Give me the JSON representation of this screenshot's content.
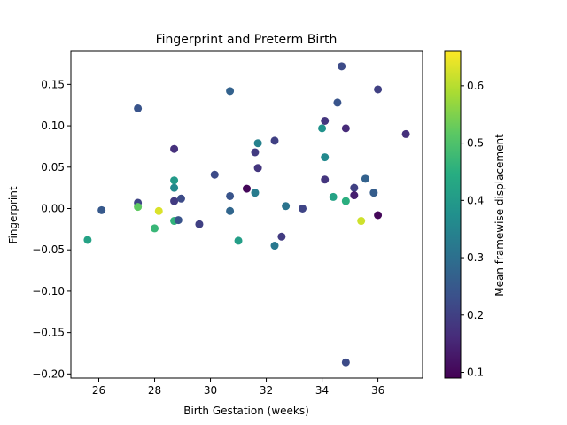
{
  "chart_data": {
    "type": "scatter",
    "title": "Fingerprint and Preterm Birth",
    "xlabel": "Birth Gestation (weeks)",
    "ylabel": "Fingerprint",
    "xlim": [
      25.0,
      37.6
    ],
    "ylim": [
      -0.205,
      0.19
    ],
    "xticks": [
      26,
      28,
      30,
      32,
      34,
      36
    ],
    "yticks": [
      -0.2,
      -0.15,
      -0.1,
      -0.05,
      0.0,
      0.05,
      0.1,
      0.15
    ],
    "colorbar": {
      "label": "Mean framewise displacement",
      "colormap": "viridis",
      "range": [
        0.09,
        0.66
      ],
      "ticks": [
        0.1,
        0.2,
        0.3,
        0.4,
        0.5,
        0.6
      ]
    },
    "grid": false,
    "points": [
      {
        "x": 25.6,
        "y": -0.038,
        "c": 0.42
      },
      {
        "x": 26.1,
        "y": -0.002,
        "c": 0.25
      },
      {
        "x": 27.4,
        "y": 0.121,
        "c": 0.24
      },
      {
        "x": 27.4,
        "y": 0.007,
        "c": 0.21
      },
      {
        "x": 27.4,
        "y": 0.002,
        "c": 0.52
      },
      {
        "x": 28.0,
        "y": -0.024,
        "c": 0.47
      },
      {
        "x": 28.15,
        "y": -0.003,
        "c": 0.63
      },
      {
        "x": 28.7,
        "y": 0.072,
        "c": 0.17
      },
      {
        "x": 28.7,
        "y": 0.034,
        "c": 0.4
      },
      {
        "x": 28.7,
        "y": 0.025,
        "c": 0.36
      },
      {
        "x": 28.7,
        "y": 0.009,
        "c": 0.19
      },
      {
        "x": 28.7,
        "y": -0.015,
        "c": 0.46
      },
      {
        "x": 28.85,
        "y": -0.014,
        "c": 0.24
      },
      {
        "x": 28.95,
        "y": 0.012,
        "c": 0.22
      },
      {
        "x": 29.6,
        "y": -0.019,
        "c": 0.2
      },
      {
        "x": 30.15,
        "y": 0.041,
        "c": 0.22
      },
      {
        "x": 30.7,
        "y": 0.142,
        "c": 0.27
      },
      {
        "x": 30.7,
        "y": 0.015,
        "c": 0.24
      },
      {
        "x": 30.7,
        "y": -0.003,
        "c": 0.28
      },
      {
        "x": 31.0,
        "y": -0.039,
        "c": 0.41
      },
      {
        "x": 31.3,
        "y": 0.024,
        "c": 0.1
      },
      {
        "x": 31.6,
        "y": 0.068,
        "c": 0.19
      },
      {
        "x": 31.6,
        "y": 0.019,
        "c": 0.33
      },
      {
        "x": 31.7,
        "y": 0.079,
        "c": 0.34
      },
      {
        "x": 31.7,
        "y": 0.049,
        "c": 0.18
      },
      {
        "x": 32.3,
        "y": 0.082,
        "c": 0.2
      },
      {
        "x": 32.3,
        "y": -0.045,
        "c": 0.32
      },
      {
        "x": 32.55,
        "y": -0.034,
        "c": 0.19
      },
      {
        "x": 32.7,
        "y": 0.003,
        "c": 0.31
      },
      {
        "x": 33.3,
        "y": 0.0,
        "c": 0.21
      },
      {
        "x": 34.0,
        "y": 0.097,
        "c": 0.38
      },
      {
        "x": 34.1,
        "y": 0.106,
        "c": 0.18
      },
      {
        "x": 34.1,
        "y": 0.062,
        "c": 0.36
      },
      {
        "x": 34.1,
        "y": 0.035,
        "c": 0.18
      },
      {
        "x": 34.4,
        "y": 0.014,
        "c": 0.42
      },
      {
        "x": 34.55,
        "y": 0.128,
        "c": 0.24
      },
      {
        "x": 34.7,
        "y": 0.172,
        "c": 0.22
      },
      {
        "x": 34.85,
        "y": 0.097,
        "c": 0.16
      },
      {
        "x": 34.85,
        "y": 0.009,
        "c": 0.45
      },
      {
        "x": 34.85,
        "y": -0.186,
        "c": 0.22
      },
      {
        "x": 35.15,
        "y": 0.025,
        "c": 0.2
      },
      {
        "x": 35.15,
        "y": 0.016,
        "c": 0.14
      },
      {
        "x": 35.4,
        "y": -0.015,
        "c": 0.62
      },
      {
        "x": 35.55,
        "y": 0.036,
        "c": 0.27
      },
      {
        "x": 35.85,
        "y": 0.019,
        "c": 0.26
      },
      {
        "x": 36.0,
        "y": 0.144,
        "c": 0.2
      },
      {
        "x": 36.0,
        "y": -0.008,
        "c": 0.1
      },
      {
        "x": 37.0,
        "y": 0.09,
        "c": 0.17
      }
    ]
  }
}
